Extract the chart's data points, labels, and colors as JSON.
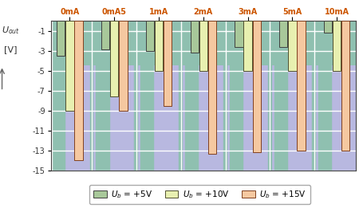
{
  "groups": [
    "0mA",
    "0mA5",
    "1mA",
    "2mA",
    "3mA",
    "5mA",
    "10mA"
  ],
  "series": [
    {
      "label": "U_b = +5V",
      "color": "#a8c89a",
      "edgecolor": "#404040",
      "values": [
        -3.5,
        -2.9,
        -3.0,
        -3.2,
        -2.6,
        -2.6,
        -1.2
      ]
    },
    {
      "label": "U_b = +10V",
      "color": "#e8f0b0",
      "edgecolor": "#505030",
      "values": [
        -9.0,
        -7.6,
        -5.0,
        -5.0,
        -5.0,
        -5.0,
        -5.0
      ]
    },
    {
      "label": "U_b = +15V",
      "color": "#f5c8a0",
      "edgecolor": "#804020",
      "values": [
        -14.0,
        -9.0,
        -8.5,
        -13.3,
        -13.2,
        -13.0,
        -13.0
      ]
    }
  ],
  "bg_teal": "#8fc0b0",
  "bg_lavender": "#b8b8e0",
  "grid_color": "#ffffff",
  "ylim": [
    -15,
    0
  ],
  "yticks": [
    -15,
    -13,
    -11,
    -9,
    -7,
    -5,
    -3,
    -1
  ],
  "bar_width": 0.2,
  "group_width": 1.0,
  "fig_width": 4.55,
  "fig_height": 2.61,
  "dpi": 100,
  "xlabel_color": "#cc5500",
  "text_color": "#333333",
  "lavender_threshold": -4.5
}
